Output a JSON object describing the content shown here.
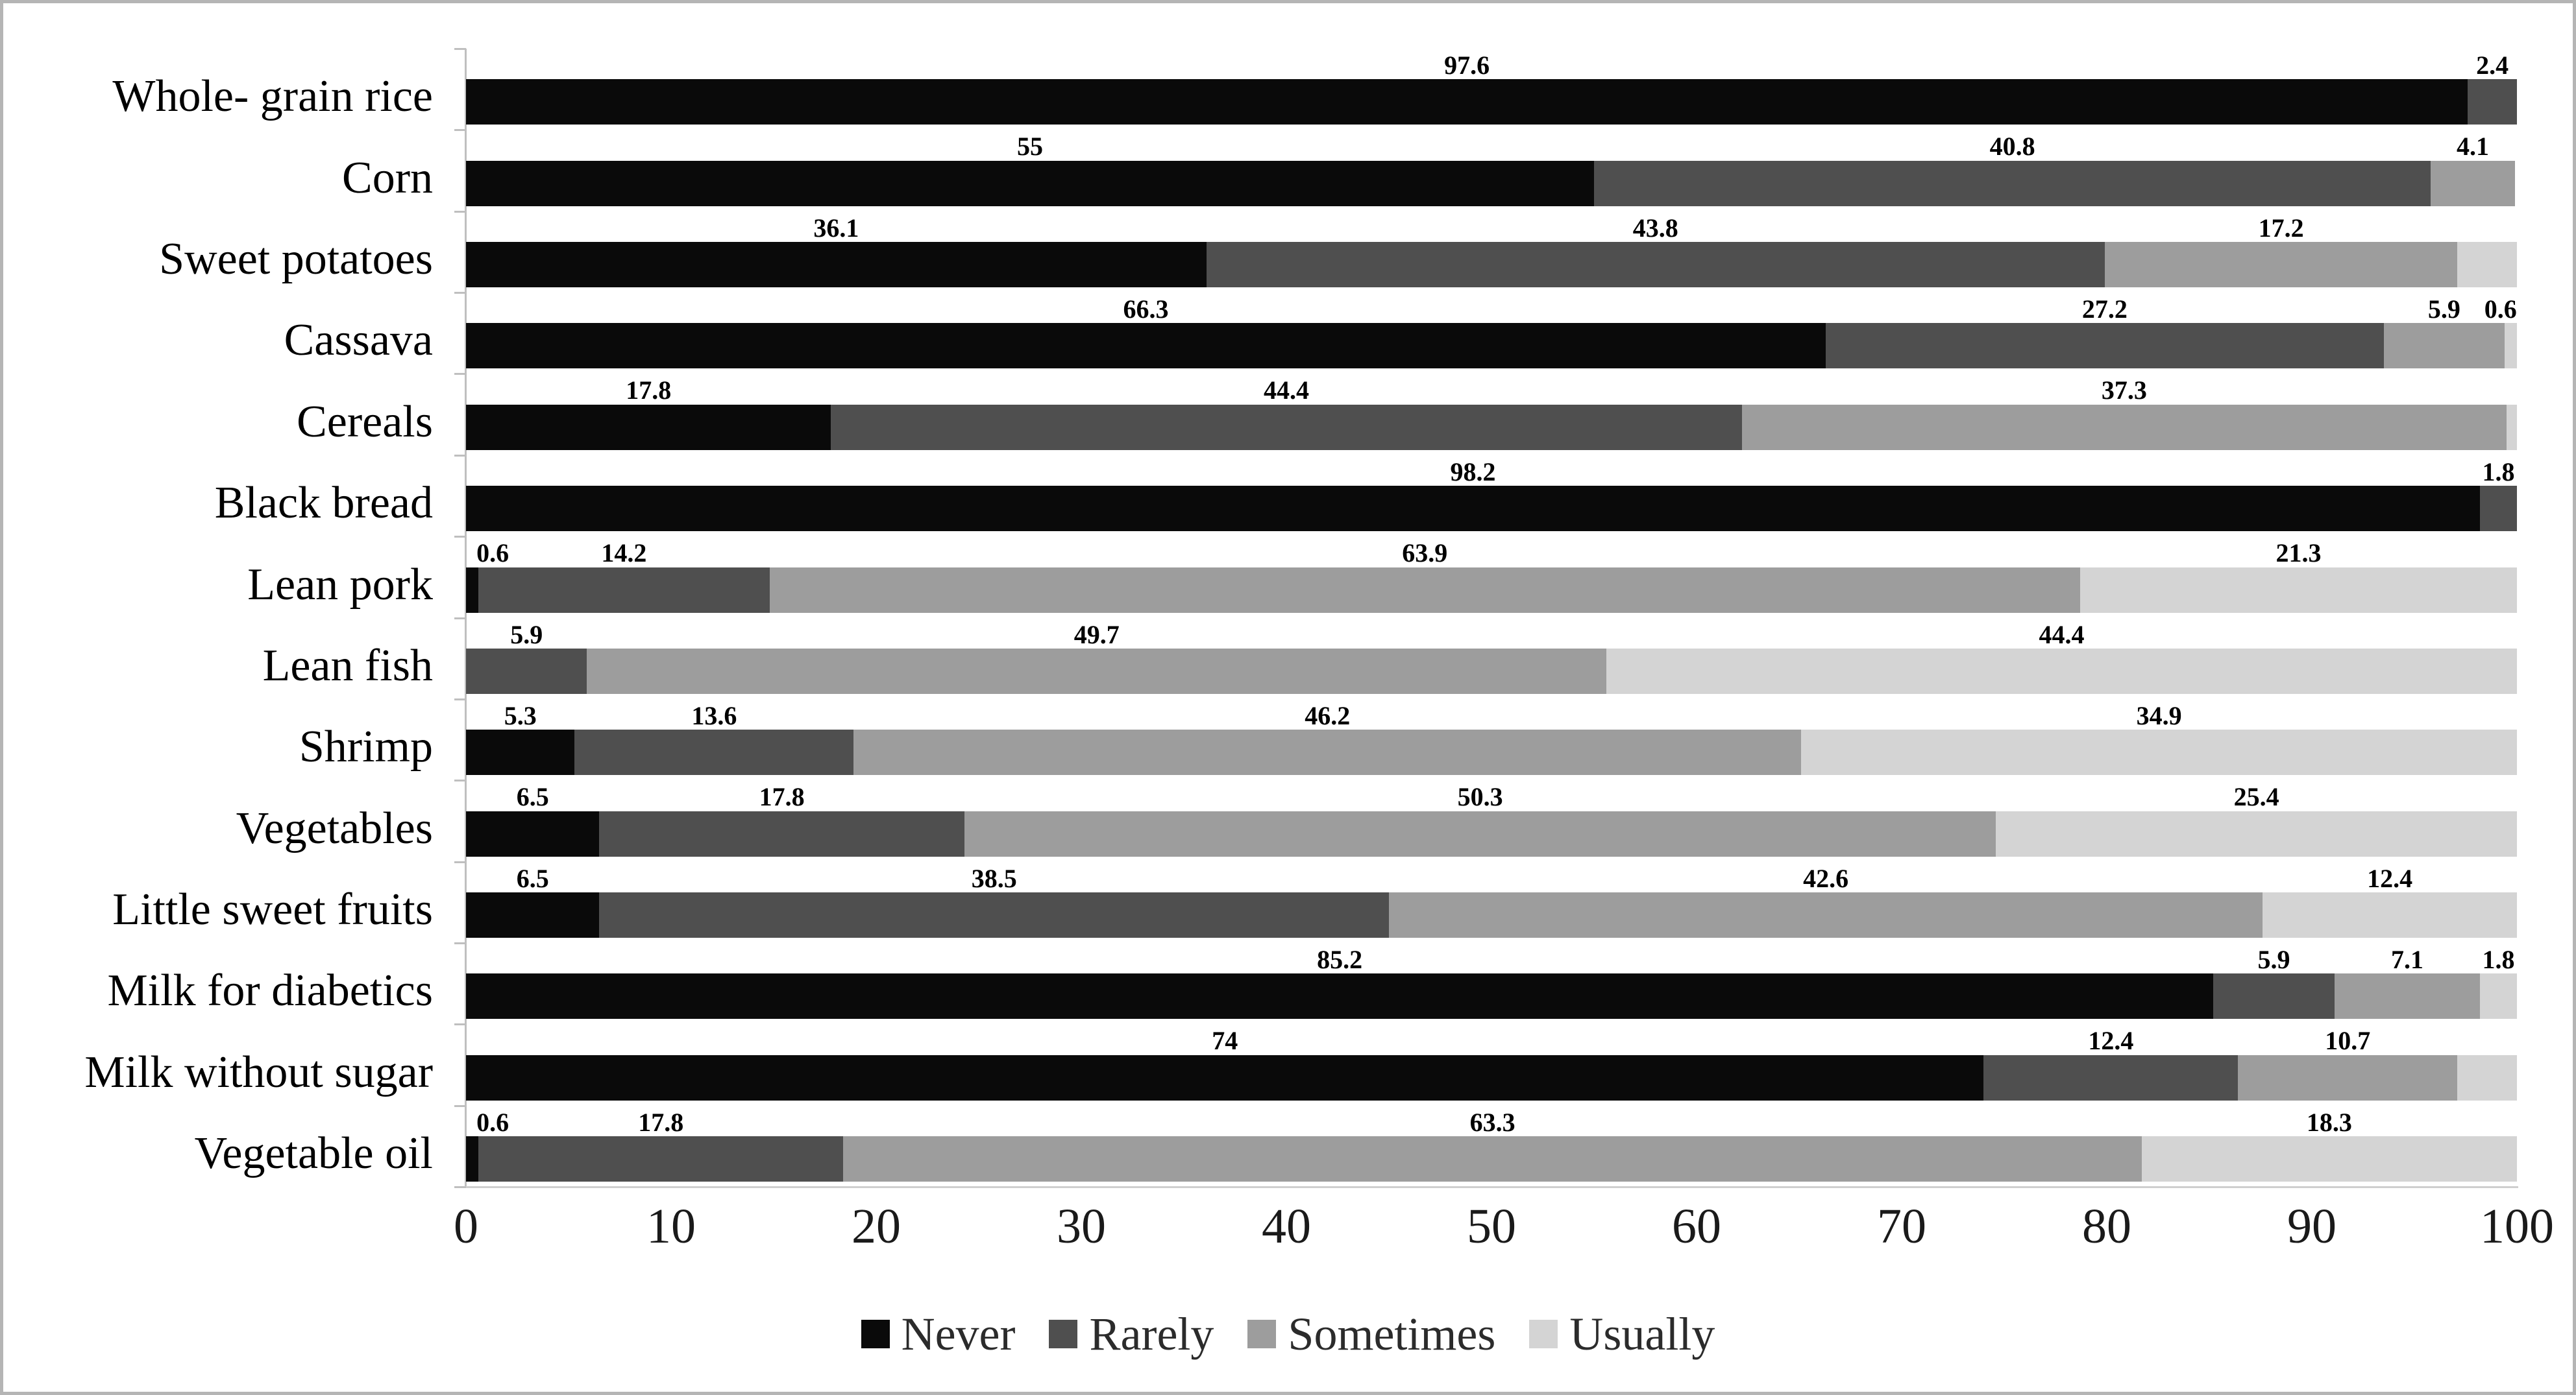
{
  "figure": {
    "background": "#ffffff",
    "border_color": "#b5b5b5"
  },
  "legend": [
    {
      "label": "Never",
      "color": "#0a0a0a"
    },
    {
      "label": "Rarely",
      "color": "#4f4f4f"
    },
    {
      "label": "Sometimes",
      "color": "#9d9d9d"
    },
    {
      "label": "Usually",
      "color": "#d4d4d4"
    }
  ],
  "chart_data": {
    "type": "bar",
    "orientation": "horizontal",
    "stacked": true,
    "title": "",
    "xlabel": "",
    "ylabel": "",
    "grid": false,
    "legend_position": "bottom",
    "x_axis": {
      "min": 0,
      "max": 100,
      "tick_step": 10,
      "ticks": [
        "0",
        "10",
        "20",
        "30",
        "40",
        "50",
        "60",
        "70",
        "80",
        "90",
        "100"
      ]
    },
    "series_colors": {
      "Never": "#0a0a0a",
      "Rarely": "#4f4f4f",
      "Sometimes": "#9d9d9d",
      "Usually": "#d4d4d4"
    },
    "categories": [
      "Whole- grain rice",
      "Corn",
      "Sweet potatoes",
      "Cassava",
      "Cereals",
      "Black bread",
      "Lean pork",
      "Lean fish",
      "Shrimp",
      "Vegetables",
      "Little sweet fruits",
      "Milk for diabetics",
      "Milk without sugar",
      "Vegetable oil"
    ],
    "series": [
      {
        "name": "Never",
        "values": [
          97.6,
          55,
          36.1,
          66.3,
          17.8,
          98.2,
          0.6,
          0,
          5.3,
          6.5,
          6.5,
          85.2,
          74,
          0.6
        ]
      },
      {
        "name": "Rarely",
        "values": [
          2.4,
          40.8,
          43.8,
          27.2,
          44.4,
          1.8,
          14.2,
          5.9,
          13.6,
          17.8,
          38.5,
          5.9,
          12.4,
          17.8
        ]
      },
      {
        "name": "Sometimes",
        "values": [
          0,
          4.1,
          17.2,
          5.9,
          37.3,
          0,
          63.9,
          49.7,
          46.2,
          50.3,
          42.6,
          7.1,
          10.7,
          63.3
        ]
      },
      {
        "name": "Usually",
        "values": [
          0,
          0,
          2.9,
          0.6,
          0.5,
          0,
          21.3,
          44.4,
          34.9,
          25.4,
          12.4,
          1.8,
          2.9,
          18.3
        ]
      }
    ],
    "rows": [
      {
        "category": "Whole- grain rice",
        "segments": [
          {
            "series": "Never",
            "value": 97.6,
            "label": "97.6"
          },
          {
            "series": "Rarely",
            "value": 2.4,
            "label": "2.4"
          }
        ]
      },
      {
        "category": "Corn",
        "segments": [
          {
            "series": "Never",
            "value": 55,
            "label": "55"
          },
          {
            "series": "Rarely",
            "value": 40.8,
            "label": "40.8"
          },
          {
            "series": "Sometimes",
            "value": 4.1,
            "label": "4.1"
          }
        ]
      },
      {
        "category": "Sweet potatoes",
        "segments": [
          {
            "series": "Never",
            "value": 36.1,
            "label": "36.1"
          },
          {
            "series": "Rarely",
            "value": 43.8,
            "label": "43.8"
          },
          {
            "series": "Sometimes",
            "value": 17.2,
            "label": "17.2"
          },
          {
            "series": "Usually",
            "value": 2.9,
            "label": ""
          }
        ]
      },
      {
        "category": "Cassava",
        "segments": [
          {
            "series": "Never",
            "value": 66.3,
            "label": "66.3"
          },
          {
            "series": "Rarely",
            "value": 27.2,
            "label": "27.2"
          },
          {
            "series": "Sometimes",
            "value": 5.9,
            "label": "5.9"
          },
          {
            "series": "Usually",
            "value": 0.6,
            "label": "0.6"
          }
        ]
      },
      {
        "category": "Cereals",
        "segments": [
          {
            "series": "Never",
            "value": 17.8,
            "label": "17.8"
          },
          {
            "series": "Rarely",
            "value": 44.4,
            "label": "44.4"
          },
          {
            "series": "Sometimes",
            "value": 37.3,
            "label": "37.3"
          },
          {
            "series": "Usually",
            "value": 0.5,
            "label": ""
          }
        ]
      },
      {
        "category": "Black bread",
        "segments": [
          {
            "series": "Never",
            "value": 98.2,
            "label": "98.2"
          },
          {
            "series": "Rarely",
            "value": 1.8,
            "label": "1.8"
          }
        ]
      },
      {
        "category": "Lean pork",
        "segments": [
          {
            "series": "Never",
            "value": 0.6,
            "label": "0.6"
          },
          {
            "series": "Rarely",
            "value": 14.2,
            "label": "14.2"
          },
          {
            "series": "Sometimes",
            "value": 63.9,
            "label": "63.9"
          },
          {
            "series": "Usually",
            "value": 21.3,
            "label": "21.3"
          }
        ]
      },
      {
        "category": "Lean fish",
        "segments": [
          {
            "series": "Rarely",
            "value": 5.9,
            "label": "5.9"
          },
          {
            "series": "Sometimes",
            "value": 49.7,
            "label": "49.7"
          },
          {
            "series": "Usually",
            "value": 44.4,
            "label": "44.4"
          }
        ]
      },
      {
        "category": "Shrimp",
        "segments": [
          {
            "series": "Never",
            "value": 5.3,
            "label": "5.3"
          },
          {
            "series": "Rarely",
            "value": 13.6,
            "label": "13.6"
          },
          {
            "series": "Sometimes",
            "value": 46.2,
            "label": "46.2"
          },
          {
            "series": "Usually",
            "value": 34.9,
            "label": "34.9"
          }
        ]
      },
      {
        "category": "Vegetables",
        "segments": [
          {
            "series": "Never",
            "value": 6.5,
            "label": "6.5"
          },
          {
            "series": "Rarely",
            "value": 17.8,
            "label": "17.8"
          },
          {
            "series": "Sometimes",
            "value": 50.3,
            "label": "50.3"
          },
          {
            "series": "Usually",
            "value": 25.4,
            "label": "25.4"
          }
        ]
      },
      {
        "category": "Little sweet fruits",
        "segments": [
          {
            "series": "Never",
            "value": 6.5,
            "label": "6.5"
          },
          {
            "series": "Rarely",
            "value": 38.5,
            "label": "38.5"
          },
          {
            "series": "Sometimes",
            "value": 42.6,
            "label": "42.6"
          },
          {
            "series": "Usually",
            "value": 12.4,
            "label": "12.4"
          }
        ]
      },
      {
        "category": "Milk for diabetics",
        "segments": [
          {
            "series": "Never",
            "value": 85.2,
            "label": "85.2"
          },
          {
            "series": "Rarely",
            "value": 5.9,
            "label": "5.9"
          },
          {
            "series": "Sometimes",
            "value": 7.1,
            "label": "7.1"
          },
          {
            "series": "Usually",
            "value": 1.8,
            "label": "1.8"
          }
        ]
      },
      {
        "category": "Milk without sugar",
        "segments": [
          {
            "series": "Never",
            "value": 74,
            "label": "74"
          },
          {
            "series": "Rarely",
            "value": 12.4,
            "label": "12.4"
          },
          {
            "series": "Sometimes",
            "value": 10.7,
            "label": "10.7"
          },
          {
            "series": "Usually",
            "value": 2.9,
            "label": ""
          }
        ]
      },
      {
        "category": "Vegetable oil",
        "segments": [
          {
            "series": "Never",
            "value": 0.6,
            "label": "0.6"
          },
          {
            "series": "Rarely",
            "value": 17.8,
            "label": "17.8"
          },
          {
            "series": "Sometimes",
            "value": 63.3,
            "label": "63.3"
          },
          {
            "series": "Usually",
            "value": 18.3,
            "label": "18.3"
          }
        ]
      }
    ]
  }
}
